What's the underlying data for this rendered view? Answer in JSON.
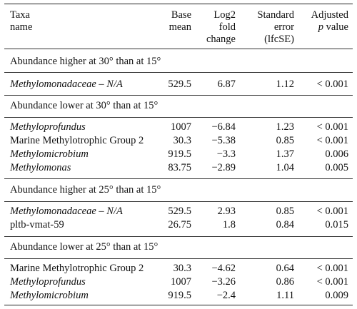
{
  "header": {
    "taxa": [
      "Taxa",
      "name"
    ],
    "base_mean": [
      "Base",
      "mean"
    ],
    "log2": [
      "Log2",
      "fold",
      "change"
    ],
    "se": [
      "Standard",
      "error",
      "(lfcSE)"
    ],
    "adjusted": [
      "Adjusted",
      "p",
      "value"
    ]
  },
  "sections": [
    {
      "title": "Abundance higher at 30° than at 15°",
      "rows": [
        {
          "taxa": "Methylomonadaceae – N/A",
          "italic": true,
          "base_mean": "529.5",
          "log2": "6.87",
          "se": "1.12",
          "p": "< 0.001"
        }
      ]
    },
    {
      "title": "Abundance lower at 30° than at 15°",
      "rows": [
        {
          "taxa": "Methyloprofundus",
          "italic": true,
          "base_mean": "1007",
          "log2": "−6.84",
          "se": "1.23",
          "p": "< 0.001"
        },
        {
          "taxa": "Marine Methylotrophic Group 2",
          "italic": false,
          "base_mean": "30.3",
          "log2": "−5.38",
          "se": "0.85",
          "p": "< 0.001"
        },
        {
          "taxa": "Methylomicrobium",
          "italic": true,
          "base_mean": "919.5",
          "log2": "−3.3",
          "se": "1.37",
          "p": "0.006"
        },
        {
          "taxa": "Methylomonas",
          "italic": true,
          "base_mean": "83.75",
          "log2": "−2.89",
          "se": "1.04",
          "p": "0.005"
        }
      ]
    },
    {
      "title": "Abundance higher at 25° than at 15°",
      "rows": [
        {
          "taxa": "Methylomonadaceae – N/A",
          "italic": true,
          "base_mean": "529.5",
          "log2": "2.93",
          "se": "0.85",
          "p": "< 0.001"
        },
        {
          "taxa": "pltb-vmat-59",
          "italic": false,
          "base_mean": "26.75",
          "log2": "1.8",
          "se": "0.84",
          "p": "0.015"
        }
      ]
    },
    {
      "title": "Abundance lower at 25° than at 15°",
      "rows": [
        {
          "taxa": "Marine Methylotrophic Group 2",
          "italic": false,
          "base_mean": "30.3",
          "log2": "−4.62",
          "se": "0.64",
          "p": "< 0.001"
        },
        {
          "taxa": "Methyloprofundus",
          "italic": true,
          "base_mean": "1007",
          "log2": "−3.26",
          "se": "0.86",
          "p": "< 0.001"
        },
        {
          "taxa": "Methylomicrobium",
          "italic": true,
          "base_mean": "919.5",
          "log2": "−2.4",
          "se": "1.11",
          "p": "0.009"
        }
      ]
    }
  ]
}
